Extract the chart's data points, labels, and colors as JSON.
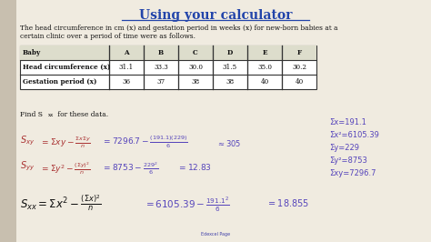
{
  "title": "Using your calculator",
  "left_panel_color": "#c8bfaf",
  "main_bg": "#f0ebe0",
  "intro_line1": "The head circumference in cm (x) and gestation period in weeks (x) for new-born babies at a",
  "intro_line2": "certain clinic over a period of time were as follows.",
  "table_headers": [
    "Baby",
    "A",
    "B",
    "C",
    "D",
    "E",
    "F"
  ],
  "table_row1_label": "Head circumference (x)",
  "table_row1_values": [
    "31.1",
    "33.3",
    "30.0",
    "31.5",
    "35.0",
    "30.2"
  ],
  "table_row2_label": "Gestation period (x)",
  "table_row2_values": [
    "36",
    "37",
    "38",
    "38",
    "40",
    "40"
  ],
  "find_text": "Find S",
  "find_sub": "xx",
  "find_rest": " for these data.",
  "right_annotations": [
    "Σx=191.1",
    "Σx²=6105.39",
    "Σy=229",
    "Σy²=8753",
    "Σxy=7296.7"
  ],
  "annot_y_positions": [
    130,
    144,
    158,
    172,
    186
  ],
  "footer": "Edexcel Page",
  "title_color": "#2244aa",
  "body_color": "#111111",
  "hw_red": "#aa3333",
  "hw_blue": "#5544bb",
  "hw_purple": "#6655aa"
}
